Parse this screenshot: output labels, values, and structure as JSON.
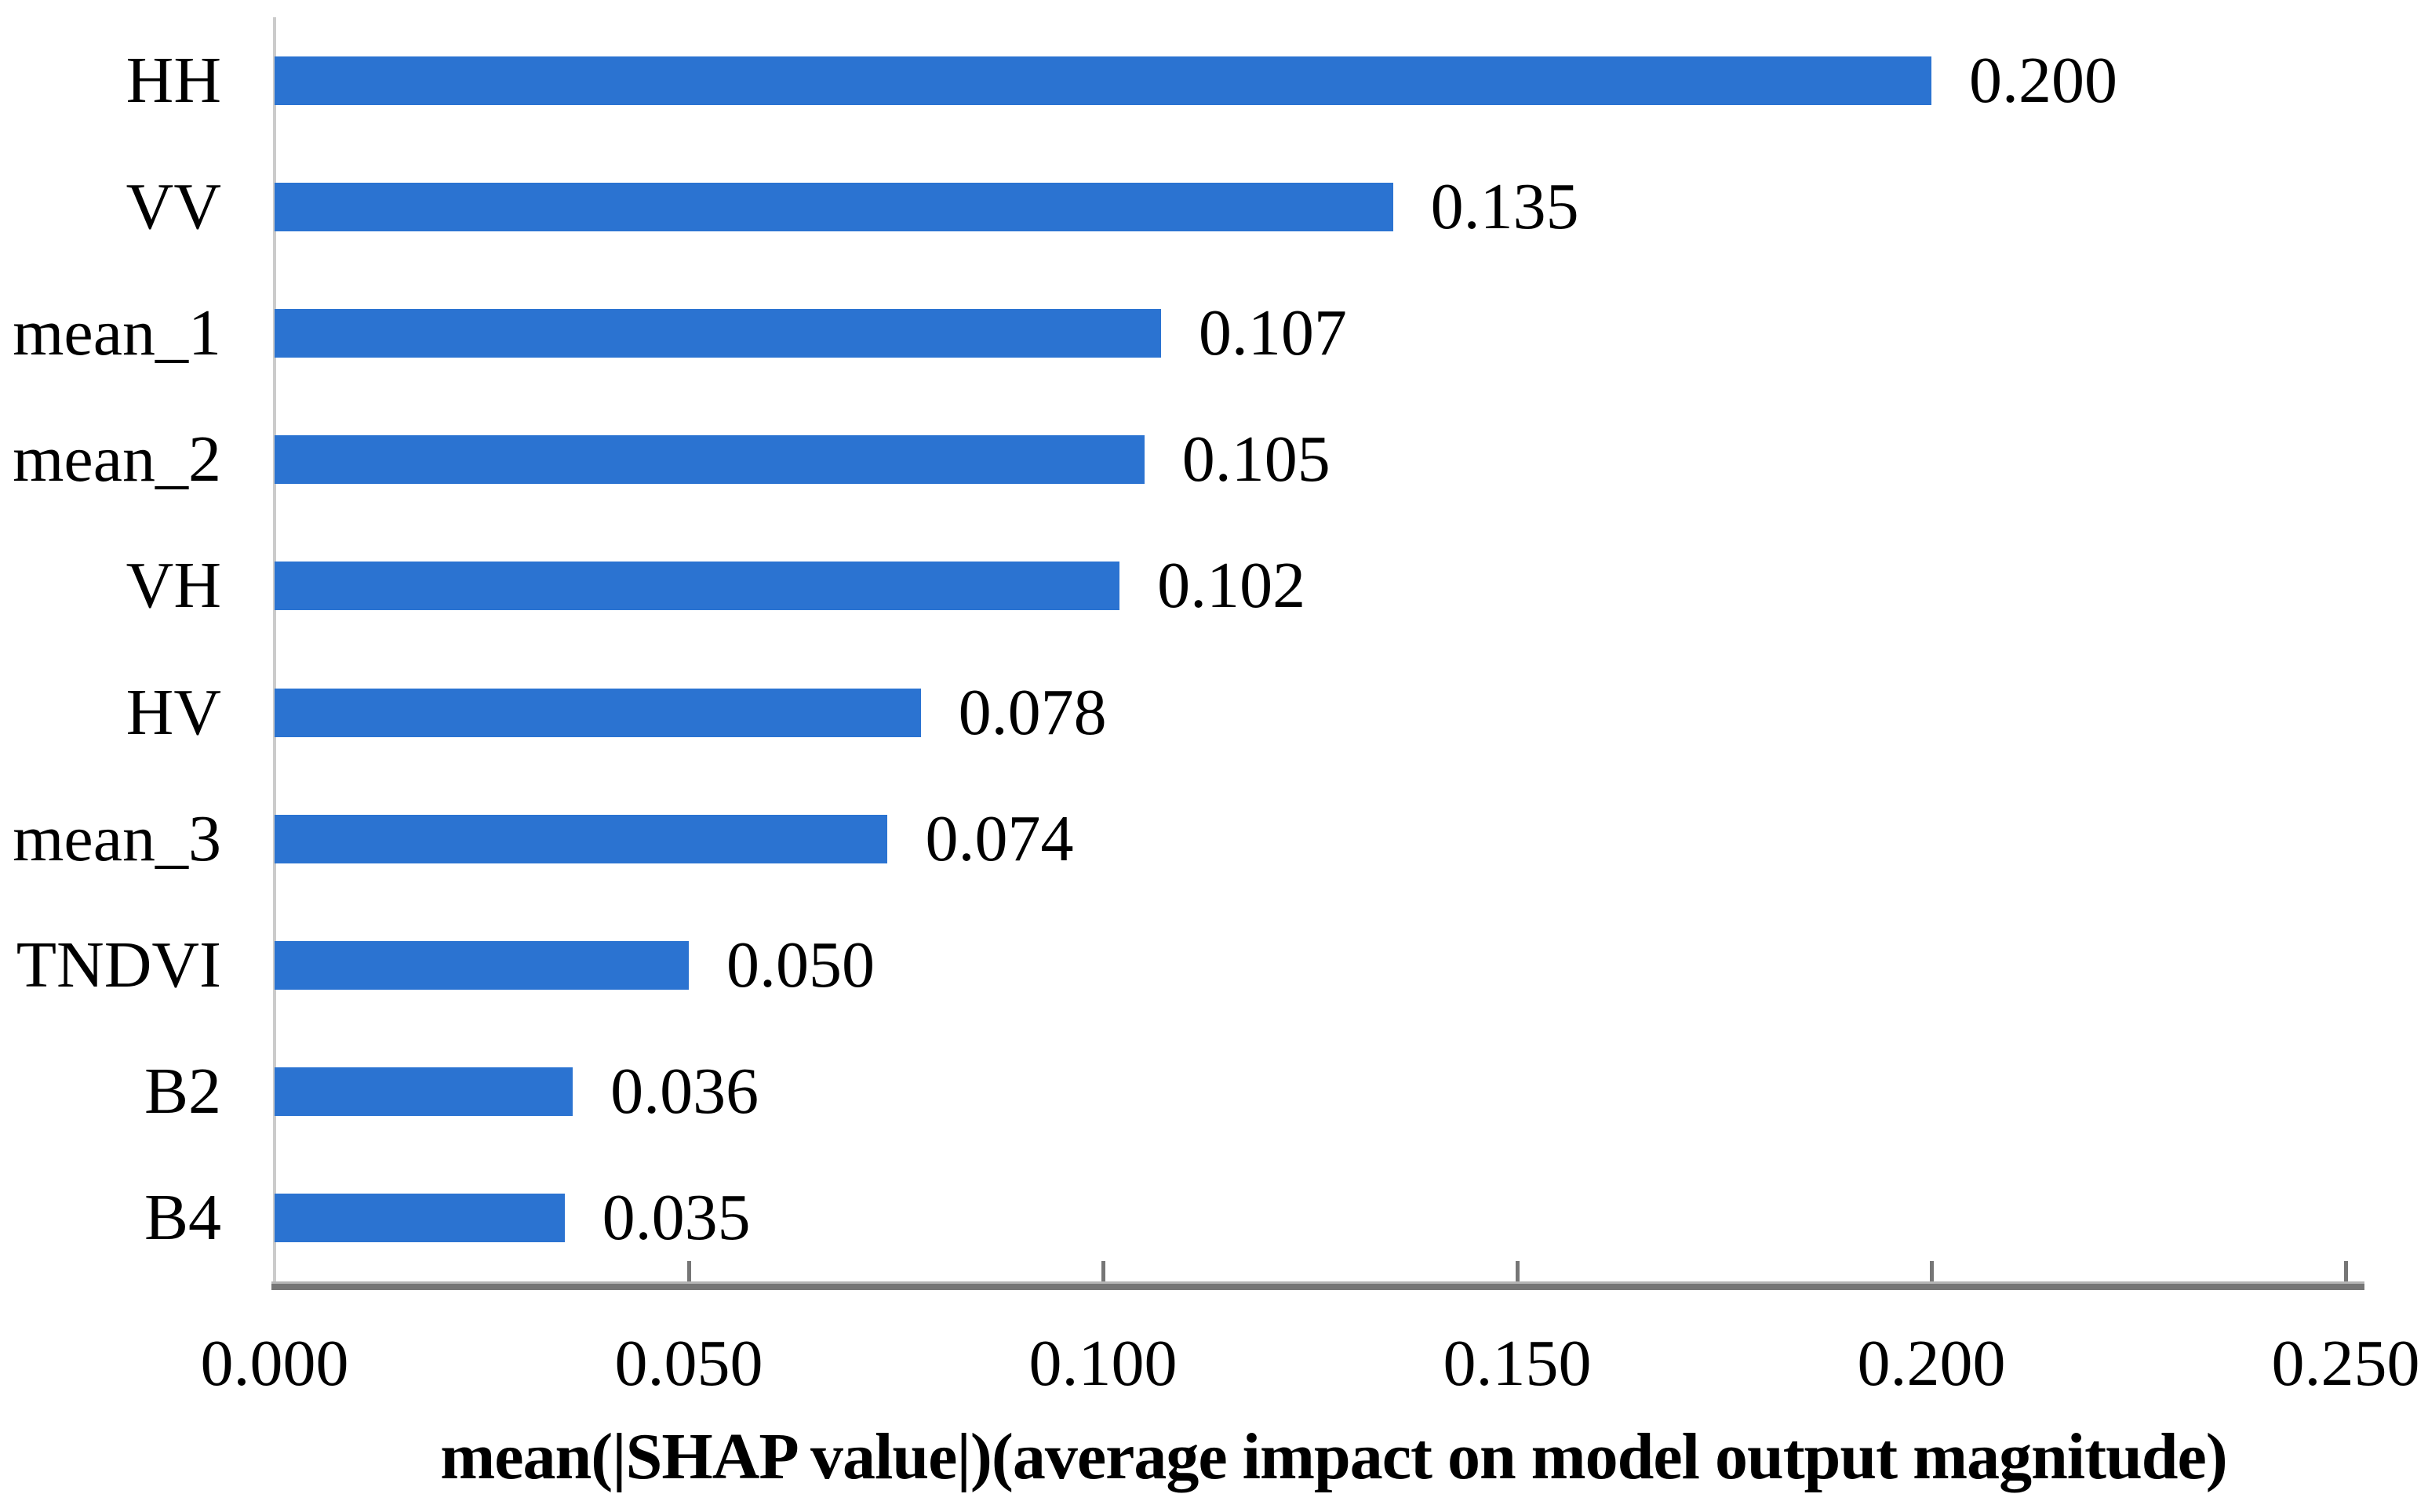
{
  "chart_data": {
    "type": "bar",
    "orientation": "horizontal",
    "title": "",
    "xlabel": "mean(|SHAP value|)(average impact on model output magnitude)",
    "ylabel": "",
    "categories": [
      "HH",
      "VV",
      "mean_1",
      "mean_2",
      "VH",
      "HV",
      "mean_3",
      "TNDVI",
      "B2",
      "B4"
    ],
    "values": [
      0.2,
      0.135,
      0.107,
      0.105,
      0.102,
      0.078,
      0.074,
      0.05,
      0.036,
      0.035
    ],
    "value_labels": [
      "0.200",
      "0.135",
      "0.107",
      "0.105",
      "0.102",
      "0.078",
      "0.074",
      "0.050",
      "0.036",
      "0.035"
    ],
    "x_ticks": [
      "0.000",
      "0.050",
      "0.100",
      "0.150",
      "0.200",
      "0.250"
    ],
    "xlim": [
      0,
      0.25
    ],
    "grid": false,
    "legend": null,
    "colors": {
      "bar": "#2B73D1",
      "x_axis_line": "#767676",
      "tick": "#767676",
      "y_axis_line": "#cbcbcb",
      "text": "#000000"
    }
  }
}
